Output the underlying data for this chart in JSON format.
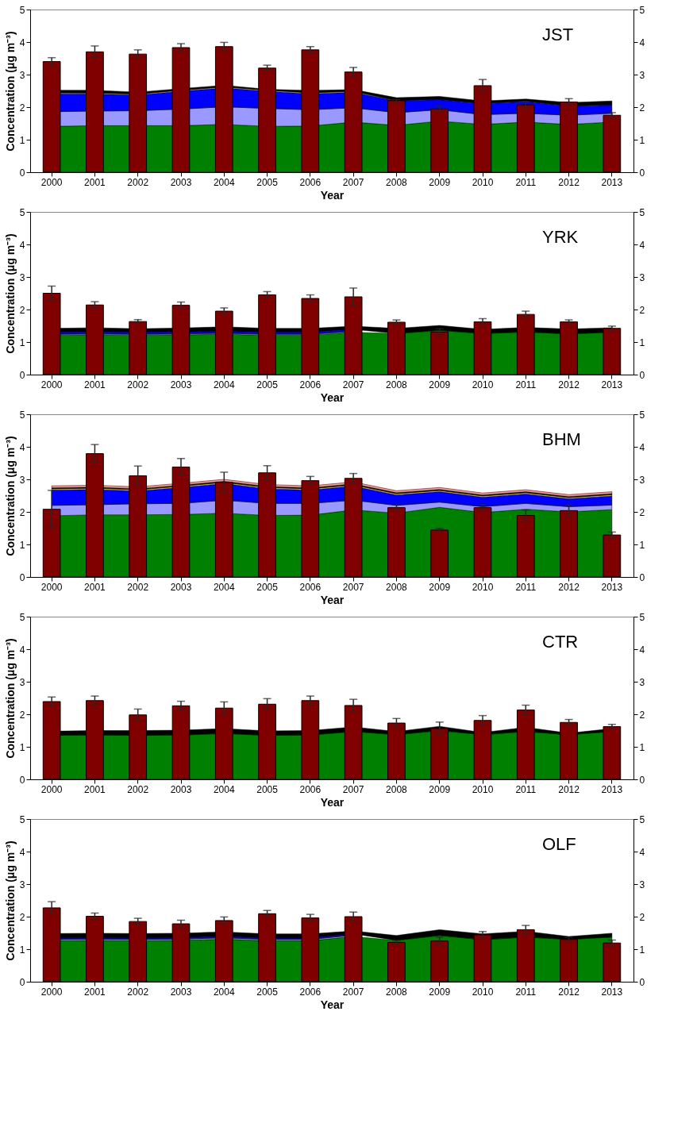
{
  "chart_data": [
    {
      "type": "bar",
      "categories": [
        "2000",
        "2001",
        "2002",
        "2003",
        "2004",
        "2005",
        "2006",
        "2007",
        "2008",
        "2009",
        "2010",
        "2011",
        "2012",
        "2013"
      ],
      "xlabel": "Year",
      "ylabel": "Concentration (μg m⁻³)",
      "ylim": [
        0,
        5
      ],
      "yticks": [
        0,
        1,
        2,
        3,
        4,
        5
      ],
      "y2lim": [
        0,
        5
      ],
      "y2ticks": [
        0,
        1,
        2,
        3,
        4,
        5
      ],
      "grid": false,
      "stacked": true,
      "annotations": [
        "JST"
      ],
      "series": [
        {
          "type": "area",
          "color": "#008000",
          "values": [
            1.41,
            1.43,
            1.43,
            1.43,
            1.47,
            1.41,
            1.42,
            1.54,
            1.44,
            1.57,
            1.47,
            1.54,
            1.47,
            1.54
          ]
        },
        {
          "type": "area",
          "color": "#9999ff",
          "values": [
            0.45,
            0.45,
            0.46,
            0.51,
            0.54,
            0.55,
            0.5,
            0.44,
            0.39,
            0.35,
            0.3,
            0.27,
            0.28,
            0.27
          ]
        },
        {
          "type": "area",
          "color": "#0000ff",
          "values": [
            0.55,
            0.52,
            0.48,
            0.55,
            0.58,
            0.53,
            0.49,
            0.48,
            0.36,
            0.31,
            0.33,
            0.36,
            0.27,
            0.25
          ]
        },
        {
          "type": "area",
          "color": "#ffcc00",
          "values": [
            0.03,
            0.03,
            0.03,
            0.03,
            0.03,
            0.03,
            0.03,
            0.03,
            0.01,
            0.01,
            0.01,
            0.01,
            0.01,
            0.01
          ]
        },
        {
          "type": "area",
          "color": "#000000",
          "values": [
            0.08,
            0.09,
            0.06,
            0.05,
            0.05,
            0.03,
            0.07,
            0.05,
            0.09,
            0.09,
            0.08,
            0.07,
            0.11,
            0.12
          ]
        },
        {
          "axis": "y2",
          "color": "#800000",
          "values": [
            3.4,
            3.7,
            3.63,
            3.83,
            3.86,
            3.2,
            3.76,
            3.08,
            2.2,
            1.94,
            2.66,
            2.07,
            2.16,
            1.75
          ],
          "errors": [
            0.12,
            0.18,
            0.13,
            0.12,
            0.13,
            0.09,
            0.1,
            0.14,
            0.04,
            0.1,
            0.19,
            0.1,
            0.1,
            0.08
          ]
        }
      ]
    },
    {
      "type": "bar",
      "categories": [
        "2000",
        "2001",
        "2002",
        "2003",
        "2004",
        "2005",
        "2006",
        "2007",
        "2008",
        "2009",
        "2010",
        "2011",
        "2012",
        "2013"
      ],
      "xlabel": "Year",
      "ylabel": "Concentration (μg m⁻³)",
      "ylim": [
        0,
        5
      ],
      "yticks": [
        0,
        1,
        2,
        3,
        4,
        5
      ],
      "y2lim": [
        0,
        5
      ],
      "y2ticks": [
        0,
        1,
        2,
        3,
        4,
        5
      ],
      "grid": false,
      "stacked": true,
      "annotations": [
        "YRK"
      ],
      "series": [
        {
          "type": "area",
          "color": "#008000",
          "values": [
            1.21,
            1.22,
            1.21,
            1.22,
            1.24,
            1.21,
            1.21,
            1.3,
            1.26,
            1.36,
            1.26,
            1.31,
            1.25,
            1.3
          ]
        },
        {
          "type": "area",
          "color": "#9999ff",
          "values": [
            0.03,
            0.03,
            0.03,
            0.03,
            0.03,
            0.03,
            0.03,
            0.03,
            null,
            null,
            null,
            null,
            null,
            null
          ]
        },
        {
          "type": "area",
          "color": "#0000ff",
          "values": [
            0.06,
            0.06,
            0.06,
            0.06,
            0.06,
            0.06,
            0.06,
            0.06,
            null,
            null,
            null,
            null,
            null,
            null
          ]
        },
        {
          "type": "area",
          "color": "#000000",
          "values": [
            0.12,
            0.13,
            0.11,
            0.12,
            0.14,
            0.12,
            0.12,
            0.1,
            0.16,
            0.15,
            0.13,
            0.14,
            0.15,
            0.14
          ]
        },
        {
          "axis": "y2",
          "color": "#800000",
          "values": [
            2.5,
            2.14,
            1.63,
            2.13,
            1.95,
            2.45,
            2.34,
            2.39,
            1.61,
            1.31,
            1.62,
            1.85,
            1.62,
            1.42
          ],
          "errors": [
            0.22,
            0.1,
            0.06,
            0.1,
            0.1,
            0.1,
            0.11,
            0.27,
            0.07,
            0.1,
            0.1,
            0.1,
            0.06,
            0.07
          ]
        }
      ]
    },
    {
      "type": "bar",
      "categories": [
        "2000",
        "2001",
        "2002",
        "2003",
        "2004",
        "2005",
        "2006",
        "2007",
        "2008",
        "2009",
        "2010",
        "2011",
        "2012",
        "2013"
      ],
      "xlabel": "Year",
      "ylabel": "Concentration (μg m⁻³)",
      "ylim": [
        0,
        5
      ],
      "yticks": [
        0,
        1,
        2,
        3,
        4,
        5
      ],
      "y2lim": [
        0,
        5
      ],
      "y2ticks": [
        0,
        1,
        2,
        3,
        4,
        5
      ],
      "grid": false,
      "stacked": true,
      "annotations": [
        "BHM"
      ],
      "series": [
        {
          "type": "area",
          "color": "#008000",
          "values": [
            1.88,
            1.91,
            1.91,
            1.92,
            1.96,
            1.89,
            1.9,
            2.06,
            1.96,
            2.14,
            1.98,
            2.08,
            2.0,
            2.07
          ]
        },
        {
          "type": "area",
          "color": "#9999ff",
          "values": [
            0.32,
            0.31,
            0.34,
            0.34,
            0.4,
            0.37,
            0.36,
            0.3,
            0.24,
            0.16,
            0.18,
            0.18,
            0.16,
            0.14
          ]
        },
        {
          "type": "area",
          "color": "#0000ff",
          "values": [
            0.47,
            0.47,
            0.39,
            0.49,
            0.51,
            0.45,
            0.41,
            0.43,
            0.32,
            0.32,
            0.29,
            0.29,
            0.24,
            0.28
          ]
        },
        {
          "type": "area",
          "color": "#ffcc00",
          "values": [
            0.04,
            0.04,
            0.04,
            0.04,
            0.04,
            0.04,
            0.04,
            0.04,
            0.04,
            0.04,
            0.04,
            0.04,
            0.04,
            0.04
          ]
        },
        {
          "type": "area",
          "color": "#000000",
          "values": [
            0.03,
            0.03,
            0.03,
            0.03,
            0.03,
            0.03,
            0.03,
            0.03,
            0.03,
            0.03,
            0.03,
            0.03,
            0.03,
            0.03
          ]
        },
        {
          "type": "area",
          "color": "#ff9999",
          "values": [
            0.06,
            0.06,
            0.06,
            0.06,
            0.06,
            0.06,
            0.06,
            0.06,
            0.06,
            0.06,
            0.06,
            0.06,
            0.06,
            0.06
          ]
        },
        {
          "axis": "y2",
          "color": "#800000",
          "values": [
            2.08,
            3.79,
            3.11,
            3.38,
            2.91,
            3.2,
            2.96,
            3.03,
            2.13,
            1.44,
            2.13,
            1.89,
            2.04,
            1.29
          ],
          "errors": [
            0.58,
            0.28,
            0.3,
            0.26,
            0.31,
            0.22,
            0.13,
            0.15,
            0.09,
            0.05,
            0.1,
            0.17,
            0.17,
            0.09
          ]
        }
      ]
    },
    {
      "type": "bar",
      "categories": [
        "2000",
        "2001",
        "2002",
        "2003",
        "2004",
        "2005",
        "2006",
        "2007",
        "2008",
        "2009",
        "2010",
        "2011",
        "2012",
        "2013"
      ],
      "xlabel": "Year",
      "ylabel": "Concentration (μg m⁻³)",
      "ylim": [
        0,
        5
      ],
      "yticks": [
        0,
        1,
        2,
        3,
        4,
        5
      ],
      "y2lim": [
        0,
        5
      ],
      "y2ticks": [
        0,
        1,
        2,
        3,
        4,
        5
      ],
      "grid": false,
      "stacked": true,
      "annotations": [
        "CTR"
      ],
      "series": [
        {
          "type": "area",
          "color": "#008000",
          "values": [
            1.35,
            1.36,
            1.35,
            1.36,
            1.41,
            1.35,
            1.36,
            1.47,
            1.37,
            1.5,
            1.37,
            1.47,
            1.37,
            1.47
          ]
        },
        {
          "type": "area",
          "color": "#000000",
          "values": [
            0.13,
            0.14,
            0.15,
            0.15,
            0.15,
            0.14,
            0.14,
            0.14,
            0.1,
            0.13,
            0.07,
            0.13,
            0.05,
            0.09
          ]
        },
        {
          "axis": "y2",
          "color": "#800000",
          "values": [
            2.39,
            2.42,
            1.98,
            2.26,
            2.19,
            2.31,
            2.42,
            2.27,
            1.73,
            1.56,
            1.81,
            2.13,
            1.75,
            1.62
          ],
          "errors": [
            0.14,
            0.14,
            0.18,
            0.14,
            0.19,
            0.17,
            0.14,
            0.19,
            0.14,
            0.2,
            0.15,
            0.15,
            0.09,
            0.07
          ]
        }
      ]
    },
    {
      "type": "bar",
      "categories": [
        "2000",
        "2001",
        "2002",
        "2003",
        "2004",
        "2005",
        "2006",
        "2007",
        "2008",
        "2009",
        "2010",
        "2011",
        "2012",
        "2013"
      ],
      "xlabel": "Year",
      "ylabel": "Concentration (μg m⁻³)",
      "ylim": [
        0,
        5
      ],
      "yticks": [
        0,
        1,
        2,
        3,
        4,
        5
      ],
      "y2lim": [
        0,
        5
      ],
      "y2ticks": [
        0,
        1,
        2,
        3,
        4,
        5
      ],
      "grid": false,
      "stacked": true,
      "annotations": [
        "OLF"
      ],
      "series": [
        {
          "type": "area",
          "color": "#008000",
          "values": [
            1.26,
            1.27,
            1.26,
            1.27,
            1.31,
            1.26,
            1.26,
            1.39,
            1.27,
            1.42,
            1.29,
            1.37,
            1.3,
            1.37
          ]
        },
        {
          "type": "area",
          "color": "#9999ff",
          "values": [
            0.04,
            0.04,
            0.04,
            0.04,
            0.04,
            0.04,
            0.04,
            0.04,
            null,
            null,
            null,
            null,
            null,
            null
          ]
        },
        {
          "type": "area",
          "color": "#0000ff",
          "values": [
            0.04,
            0.04,
            0.04,
            0.04,
            0.04,
            0.04,
            0.04,
            0.04,
            null,
            null,
            null,
            null,
            null,
            null
          ]
        },
        {
          "type": "area",
          "color": "#000000",
          "values": [
            0.14,
            0.14,
            0.14,
            0.14,
            0.14,
            0.13,
            0.13,
            0.09,
            0.15,
            0.18,
            0.18,
            0.18,
            0.09,
            0.12
          ]
        },
        {
          "axis": "y2",
          "color": "#800000",
          "values": [
            2.27,
            2.01,
            1.85,
            1.78,
            1.88,
            2.09,
            1.96,
            2.0,
            1.21,
            1.25,
            1.44,
            1.6,
            1.3,
            1.19
          ],
          "errors": [
            0.19,
            0.1,
            0.1,
            0.11,
            0.11,
            0.1,
            0.11,
            0.14,
            0.06,
            0.12,
            0.1,
            0.13,
            0.06,
            0.09
          ]
        }
      ]
    }
  ]
}
